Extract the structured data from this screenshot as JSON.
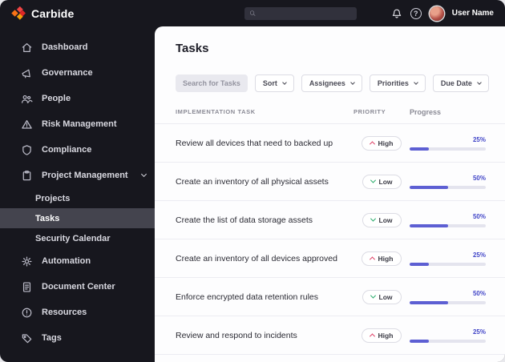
{
  "brand": {
    "name": "Carbide"
  },
  "topbar": {
    "search_placeholder": "",
    "search_value": "",
    "user_name": "User Name"
  },
  "sidebar": {
    "items": [
      {
        "label": "Dashboard"
      },
      {
        "label": "Governance"
      },
      {
        "label": "People"
      },
      {
        "label": "Risk Management"
      },
      {
        "label": "Compliance"
      },
      {
        "label": "Project Management"
      },
      {
        "label": "Automation"
      },
      {
        "label": "Document Center"
      },
      {
        "label": "Resources"
      },
      {
        "label": "Tags"
      }
    ],
    "project_subitems": [
      {
        "label": "Projects",
        "active": false
      },
      {
        "label": "Tasks",
        "active": true
      },
      {
        "label": "Security Calendar",
        "active": false
      }
    ]
  },
  "main": {
    "title": "Tasks",
    "filters": {
      "search_label": "Search for Tasks",
      "dropdowns": [
        "Sort",
        "Assignees",
        "Priorities",
        "Due Date"
      ]
    },
    "table": {
      "headers": {
        "task": "IMPLEMENTATION TASK",
        "priority": "PRIORITY",
        "progress": "Progress"
      },
      "rows": [
        {
          "task": "Review all devices that need to backed up",
          "priority": "High",
          "progress": 25
        },
        {
          "task": "Create an inventory of all physical assets",
          "priority": "Low",
          "progress": 50
        },
        {
          "task": "Create the list of data storage assets",
          "priority": "Low",
          "progress": 50
        },
        {
          "task": "Create an inventory of all devices approved",
          "priority": "High",
          "progress": 25
        },
        {
          "task": "Enforce encrypted data retention rules",
          "priority": "Low",
          "progress": 50
        },
        {
          "task": "Review and respond to incidents",
          "priority": "High",
          "progress": 25
        }
      ]
    }
  },
  "colors": {
    "accent": "#5d5fd3",
    "percent_text": "#4347c8",
    "priority_high": "#e0476b",
    "priority_low": "#2fae6f",
    "sidebar_bg": "#17171e",
    "active_item_bg": "#44444e"
  }
}
